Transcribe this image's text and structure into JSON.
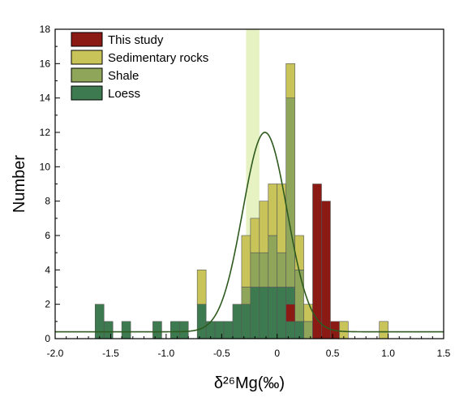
{
  "chart_data": {
    "type": "bar",
    "subtype": "stacked-histogram",
    "xlabel": "δ²⁶Mg(‰)",
    "ylabel": "Number",
    "xlim": [
      -2.0,
      1.5
    ],
    "ylim": [
      0,
      18
    ],
    "x_ticks": [
      "-2.0",
      "-1.5",
      "-1.0",
      "-0.5",
      "0",
      "0.5",
      "1.0",
      "1.5"
    ],
    "x_tick_values": [
      -2.0,
      -1.5,
      -1.0,
      -0.5,
      0,
      0.5,
      1.0,
      1.5
    ],
    "y_ticks": [
      "0",
      "2",
      "4",
      "6",
      "8",
      "10",
      "12",
      "14",
      "16",
      "18"
    ],
    "y_tick_values": [
      0,
      2,
      4,
      6,
      8,
      10,
      12,
      14,
      16,
      18
    ],
    "bin_width": 0.08,
    "bins": [
      -1.64,
      -1.56,
      -1.4,
      -1.12,
      -0.96,
      -0.88,
      -0.72,
      -0.64,
      -0.56,
      -0.48,
      -0.4,
      -0.32,
      -0.24,
      -0.16,
      -0.08,
      0.0,
      0.08,
      0.16,
      0.24,
      0.32,
      0.4,
      0.48,
      0.56,
      0.92
    ],
    "series": [
      {
        "name": "Loess",
        "color": "#3d7a50",
        "values": [
          2,
          1,
          1,
          1,
          1,
          1,
          2,
          1,
          1,
          1,
          2,
          2,
          3,
          3,
          3,
          3,
          3,
          1,
          0,
          0,
          0,
          0,
          0,
          0
        ]
      },
      {
        "name": "Shale",
        "color": "#8fa55a",
        "values": [
          0,
          0,
          0,
          0,
          0,
          0,
          0,
          0,
          0,
          0,
          0,
          1,
          2,
          2,
          3,
          2,
          11,
          3,
          1,
          1,
          1,
          0,
          0,
          0
        ]
      },
      {
        "name": "Sedimentary rocks",
        "color": "#c8c45a",
        "values": [
          0,
          0,
          0,
          0,
          0,
          0,
          2,
          0,
          0,
          0,
          0,
          3,
          2,
          3,
          3,
          4,
          2,
          2,
          1,
          0,
          0,
          1,
          1,
          1
        ]
      },
      {
        "name": "This study",
        "color": "#8b1a14",
        "values": [
          0,
          0,
          0,
          0,
          0,
          0,
          0,
          0,
          0,
          0,
          0,
          0,
          0,
          0,
          0,
          0,
          0,
          0,
          0,
          0,
          0,
          0,
          0,
          0
        ]
      }
    ],
    "this_study_overlay": [
      {
        "x": 0.08,
        "from": 1,
        "to": 2
      },
      {
        "x": 0.32,
        "from": 0,
        "to": 9
      },
      {
        "x": 0.4,
        "from": 0,
        "to": 8
      },
      {
        "x": 0.48,
        "from": 0,
        "to": 1
      }
    ],
    "highlight_band": {
      "x0": -0.28,
      "x1": -0.16,
      "color": "#e6f2c2"
    },
    "fit_curve": {
      "type": "gaussian",
      "mean": -0.11,
      "sigma": 0.2,
      "peak": 12,
      "baseline": 0.4,
      "color": "#2e5a1e"
    },
    "legend": {
      "placement": "top-left",
      "entries": [
        {
          "label": "This study",
          "color": "#8b1a14"
        },
        {
          "label": "Sedimentary rocks",
          "color": "#c8c45a"
        },
        {
          "label": "Shale",
          "color": "#8fa55a"
        },
        {
          "label": "Loess",
          "color": "#3d7a50"
        }
      ]
    },
    "grid": false
  }
}
